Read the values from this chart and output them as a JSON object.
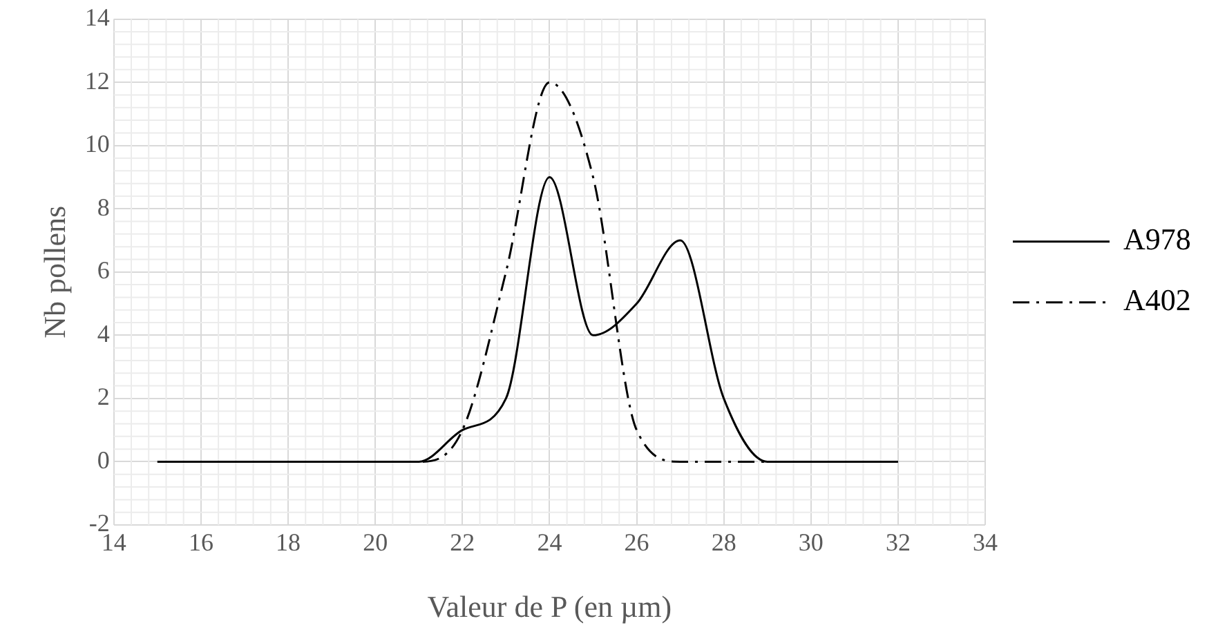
{
  "chart_data": {
    "type": "line",
    "xlabel": "Valeur de P (en µm)",
    "ylabel": "Nb pollens",
    "x": [
      15,
      16,
      17,
      18,
      19,
      20,
      21,
      22,
      23,
      24,
      25,
      26,
      27,
      28,
      29,
      30,
      31,
      32
    ],
    "series": [
      {
        "name": "A978",
        "color": "#000000",
        "line_style": "solid",
        "values": [
          0,
          0,
          0,
          0,
          0,
          0,
          0,
          1,
          2,
          9,
          4,
          5,
          7,
          2,
          0,
          0,
          0,
          0
        ]
      },
      {
        "name": "A402",
        "color": "#000000",
        "line_style": "dashed",
        "values": [
          0,
          0,
          0,
          0,
          0,
          0,
          0,
          1,
          6,
          12,
          9,
          1,
          0,
          0,
          0,
          0,
          0,
          0
        ]
      }
    ],
    "xlim": [
      14,
      34
    ],
    "xticks": [
      14,
      16,
      18,
      20,
      22,
      24,
      26,
      28,
      30,
      32,
      34
    ],
    "ylim": [
      -2,
      14
    ],
    "yticks": [
      -2,
      0,
      2,
      4,
      6,
      8,
      10,
      12,
      14
    ],
    "grid": true,
    "legend": "right",
    "marker": "none"
  }
}
